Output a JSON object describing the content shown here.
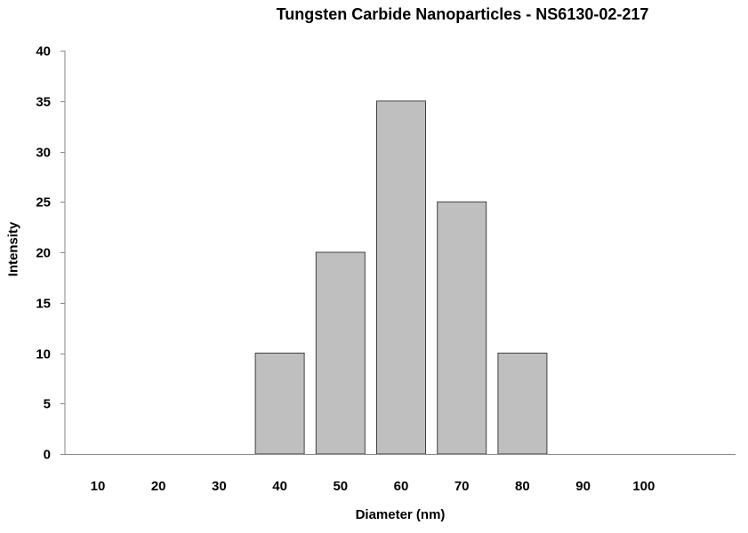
{
  "chart_data": {
    "type": "bar",
    "title": "Tungsten Carbide Nanoparticles - NS6130-02-217",
    "xlabel": "Diameter (nm)",
    "ylabel": "Intensity",
    "categories": [
      "10",
      "20",
      "30",
      "40",
      "50",
      "60",
      "70",
      "80",
      "90",
      "100"
    ],
    "values": [
      0,
      0,
      0,
      10,
      20,
      35,
      25,
      10,
      0,
      0
    ],
    "ylim": [
      0,
      40
    ],
    "yticks": [
      0,
      5,
      10,
      15,
      20,
      25,
      30,
      35,
      40
    ],
    "grid": false,
    "legend": null,
    "bar_color": "#bfbfbf",
    "bar_edge_color": "#404040"
  }
}
